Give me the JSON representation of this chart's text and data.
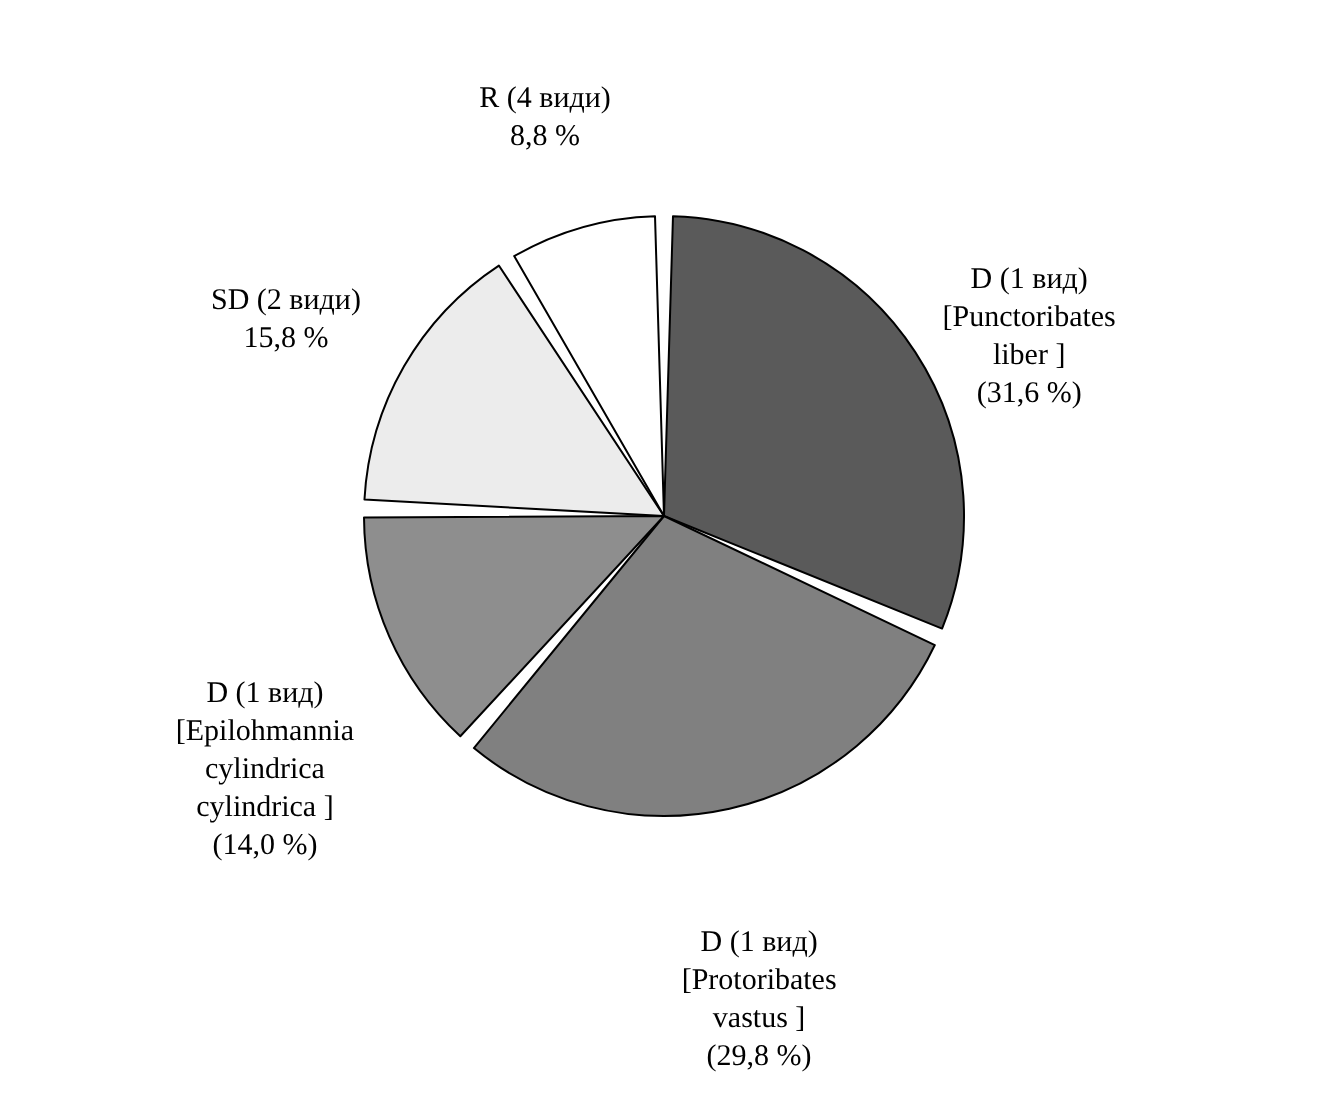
{
  "chart_data": {
    "type": "pie",
    "categories": [
      "D (1 вид)\n[Punctoribates\nliber ]",
      "D (1 вид)\n[Protoribates\nvastus ]",
      "D (1 вид)\n[Epilohmannia\ncylindrica\ncylindrica ]",
      "SD (2 види)",
      "R (4 види)"
    ],
    "values": [
      31.6,
      29.8,
      14.0,
      15.8,
      8.8
    ],
    "value_labels": [
      "(31,6 %)",
      "(29,8 %)",
      "(14,0 %)",
      "15,8 %",
      "8,8 %"
    ],
    "colors": [
      "#5a5a5a",
      "#808080",
      "#8e8e8e",
      "#ececec",
      "#ffffff"
    ]
  }
}
